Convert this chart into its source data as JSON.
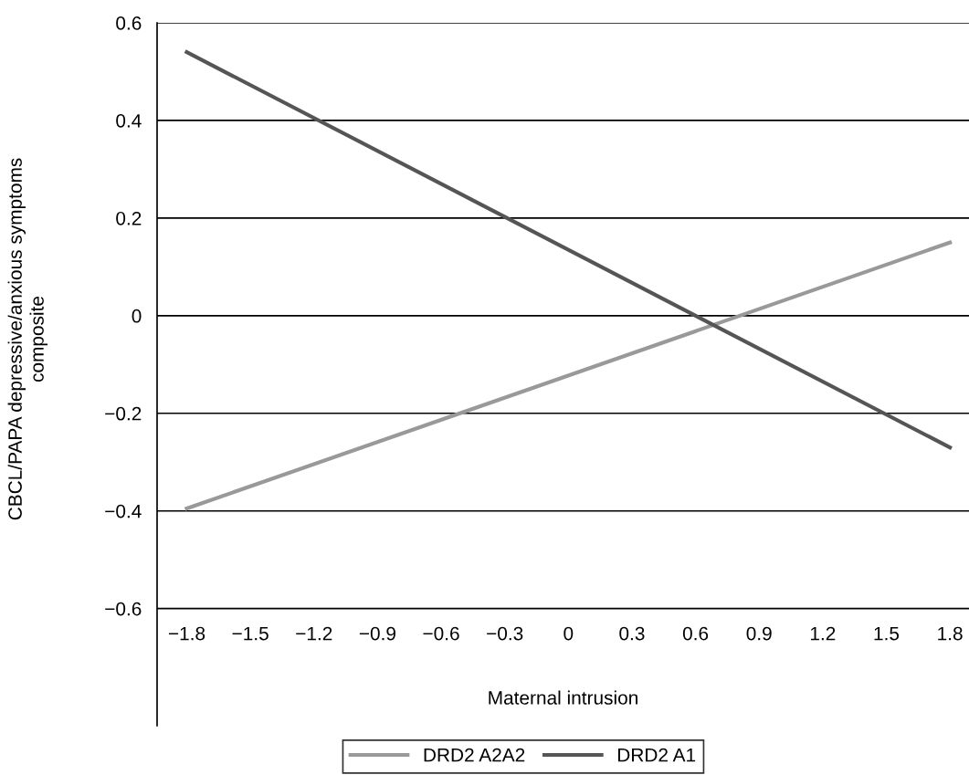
{
  "chart_data": {
    "type": "line",
    "xlabel": "Maternal intrusion",
    "ylabel": "CBCL/PAPA depressive/anxious symptoms\ncomposite",
    "x": [
      -1.8,
      1.8
    ],
    "series": [
      {
        "name": "DRD2 A2A2",
        "color": "#999999",
        "values": [
          -0.395,
          0.15
        ]
      },
      {
        "name": "DRD2 A1",
        "color": "#555555",
        "values": [
          0.54,
          -0.27
        ]
      }
    ],
    "xlim": [
      -1.94,
      1.89
    ],
    "ylim": [
      -0.84,
      0.6
    ],
    "xticks": [
      {
        "value": -1.8,
        "label": "−1.8"
      },
      {
        "value": -1.5,
        "label": "−1.5"
      },
      {
        "value": -1.2,
        "label": "−1.2"
      },
      {
        "value": -0.9,
        "label": "−0.9"
      },
      {
        "value": -0.6,
        "label": "−0.6"
      },
      {
        "value": -0.3,
        "label": "−0.3"
      },
      0,
      0.3,
      0.6,
      0.9,
      1.2,
      1.5,
      1.8
    ],
    "yticks": [
      {
        "value": -0.6,
        "label": "−0.6"
      },
      {
        "value": -0.4,
        "label": "−0.4"
      },
      {
        "value": -0.2,
        "label": "−0.2"
      },
      0,
      0.2,
      0.4,
      0.6
    ],
    "grid": "y",
    "legend": "bottom",
    "marker": "none",
    "line_style": "solid"
  }
}
